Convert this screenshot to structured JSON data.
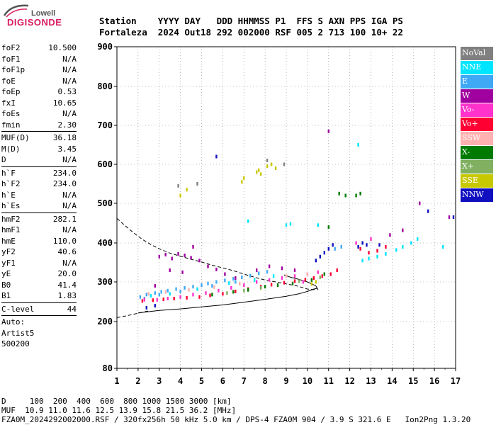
{
  "logo": {
    "line1": "Lowell",
    "line2": "DIGISONDE"
  },
  "header": {
    "line1": "Station    YYYY DAY   DDD HHMMSS P1  FFS S AXN PPS IGA PS",
    "line2": "Fortaleza  2024 Out18 292 002000 RSF 005 2 713 100 10+ 22"
  },
  "params": {
    "group1": [
      {
        "name": "foF2",
        "value": "10.500"
      },
      {
        "name": "foF1",
        "value": "N/A"
      },
      {
        "name": "foF1p",
        "value": "N/A"
      },
      {
        "name": "foE",
        "value": "N/A"
      },
      {
        "name": "foEp",
        "value": "0.53"
      },
      {
        "name": "fxI",
        "value": "10.65"
      },
      {
        "name": "foEs",
        "value": "N/A"
      },
      {
        "name": "fmin",
        "value": "2.30"
      }
    ],
    "group2": [
      {
        "name": "MUF(D)",
        "value": "36.18"
      },
      {
        "name": "M(D)",
        "value": "3.45"
      },
      {
        "name": "D",
        "value": "N/A"
      }
    ],
    "group3": [
      {
        "name": "h`F",
        "value": "234.0"
      },
      {
        "name": "h`F2",
        "value": "234.0"
      },
      {
        "name": "h`E",
        "value": "N/A"
      },
      {
        "name": "h`Es",
        "value": "N/A"
      }
    ],
    "group4": [
      {
        "name": "hmF2",
        "value": "282.1"
      },
      {
        "name": "hmF1",
        "value": "N/A"
      },
      {
        "name": "hmE",
        "value": "110.0"
      },
      {
        "name": "yF2",
        "value": "40.6"
      },
      {
        "name": "yF1",
        "value": "N/A"
      },
      {
        "name": "yE",
        "value": "20.0"
      },
      {
        "name": "B0",
        "value": "41.4"
      },
      {
        "name": "B1",
        "value": "1.83"
      }
    ],
    "group5": [
      {
        "name": "C-level",
        "value": "44"
      }
    ],
    "notes": [
      "Auto:",
      "Artist5",
      "500200"
    ]
  },
  "legend": [
    {
      "label": "NoVal",
      "color": "#808080"
    },
    {
      "label": "NNE",
      "color": "#00e5ff"
    },
    {
      "label": "E",
      "color": "#3fa9f5"
    },
    {
      "label": "W",
      "color": "#a0009f"
    },
    {
      "label": "Vo-",
      "color": "#ff33cc"
    },
    {
      "label": "Vo+",
      "color": "#ff0033"
    },
    {
      "label": "SSW",
      "color": "#ffb0b0"
    },
    {
      "label": "X-",
      "color": "#007a00"
    },
    {
      "label": "X+",
      "color": "#80b060"
    },
    {
      "label": "SSE",
      "color": "#c8c800"
    },
    {
      "label": "NNW",
      "color": "#1010c0"
    }
  ],
  "footer": {
    "line1": "D     100  200  400  600  800 1000 1500 3000 [km]",
    "line2": "MUF  10.9 11.0 11.6 12.5 13.9 15.8 21.5 36.2 [MHz]",
    "line3": "FZA0M_2024292002000.RSF / 320fx256h 50 kHz 5.0 km / DPS-4 FZA0M 904 / 3.9 S 321.6 E   Ion2Png 1.3.20"
  },
  "chart_data": {
    "type": "scatter",
    "x_ticks": [
      "1",
      "2",
      "3",
      "4",
      "5",
      "6",
      "7",
      "8",
      "9",
      "10",
      "11",
      "12",
      "13",
      "14",
      "15",
      "16",
      "17"
    ],
    "y_ticks": [
      "80",
      "200",
      "300",
      "400",
      "500",
      "600",
      "700",
      "800",
      "900"
    ],
    "xlim": [
      1,
      17
    ],
    "y_mapping": [
      [
        80,
        520
      ],
      [
        200,
        454
      ],
      [
        300,
        398
      ],
      [
        400,
        343
      ],
      [
        500,
        287
      ],
      [
        600,
        232
      ],
      [
        700,
        177
      ],
      [
        800,
        122
      ],
      [
        900,
        66
      ]
    ],
    "grid": true,
    "series": [
      {
        "name": "E",
        "color": "#3fa9f5",
        "points": [
          [
            2.1,
            262
          ],
          [
            2.4,
            268
          ],
          [
            2.8,
            272
          ],
          [
            3.1,
            275
          ],
          [
            3.4,
            278
          ],
          [
            3.8,
            282
          ],
          [
            4.2,
            285
          ],
          [
            4.6,
            288
          ],
          [
            5.0,
            292
          ],
          [
            5.3,
            296
          ],
          [
            5.7,
            300
          ],
          [
            6.1,
            304
          ],
          [
            6.5,
            308
          ],
          [
            6.9,
            312
          ],
          [
            7.3,
            316
          ],
          [
            7.7,
            322
          ],
          [
            8.1,
            326
          ],
          [
            2.3,
            258
          ],
          [
            3.0,
            268
          ],
          [
            4.0,
            276
          ],
          [
            5.5,
            290
          ],
          [
            6.6,
            300
          ],
          [
            11.3,
            385
          ],
          [
            11.6,
            390
          ]
        ]
      },
      {
        "name": "NNE",
        "color": "#00e5ff",
        "points": [
          [
            2.6,
            265
          ],
          [
            3.5,
            270
          ],
          [
            4.8,
            282
          ],
          [
            6.3,
            297
          ],
          [
            7.5,
            305
          ],
          [
            8.4,
            315
          ],
          [
            12.6,
            355
          ],
          [
            12.9,
            360
          ],
          [
            13.3,
            365
          ],
          [
            13.7,
            372
          ],
          [
            14.2,
            382
          ],
          [
            14.5,
            390
          ],
          [
            14.9,
            400
          ],
          [
            15.2,
            410
          ],
          [
            16.4,
            390
          ],
          [
            9.0,
            445
          ],
          [
            9.2,
            448
          ],
          [
            12.4,
            650
          ],
          [
            7.2,
            455
          ],
          [
            10.5,
            445
          ]
        ]
      },
      {
        "name": "W",
        "color": "#a0009f",
        "points": [
          [
            3.0,
            365
          ],
          [
            3.3,
            370
          ],
          [
            3.6,
            360
          ],
          [
            3.9,
            372
          ],
          [
            4.2,
            368
          ],
          [
            4.5,
            362
          ],
          [
            4.9,
            355
          ],
          [
            5.3,
            340
          ],
          [
            5.7,
            332
          ],
          [
            6.1,
            320
          ],
          [
            3.5,
            330
          ],
          [
            4.1,
            325
          ],
          [
            6.6,
            310
          ],
          [
            7.6,
            330
          ],
          [
            8.2,
            340
          ],
          [
            8.8,
            335
          ],
          [
            9.4,
            330
          ],
          [
            4.6,
            390
          ],
          [
            15.3,
            500
          ],
          [
            16.7,
            465
          ],
          [
            11.0,
            685
          ],
          [
            13.9,
            420
          ],
          [
            14.5,
            432
          ],
          [
            2.8,
            290
          ]
        ]
      },
      {
        "name": "Vo-",
        "color": "#ff33cc",
        "points": [
          [
            2.3,
            255
          ],
          [
            2.9,
            255
          ],
          [
            3.4,
            258
          ],
          [
            4.0,
            262
          ],
          [
            4.6,
            268
          ],
          [
            5.2,
            272
          ],
          [
            5.8,
            278
          ],
          [
            6.4,
            285
          ],
          [
            7.0,
            292
          ],
          [
            7.6,
            300
          ],
          [
            8.2,
            305
          ],
          [
            8.8,
            310
          ],
          [
            9.4,
            315
          ],
          [
            10.0,
            320
          ],
          [
            10.5,
            325
          ],
          [
            9.8,
            300
          ],
          [
            12.3,
            400
          ],
          [
            13.0,
            410
          ]
        ]
      },
      {
        "name": "Vo+",
        "color": "#ff0033",
        "points": [
          [
            2.2,
            252
          ],
          [
            2.7,
            254
          ],
          [
            3.2,
            256
          ],
          [
            3.7,
            258
          ],
          [
            4.3,
            260
          ],
          [
            4.9,
            262
          ],
          [
            5.4,
            266
          ],
          [
            6.0,
            270
          ],
          [
            6.6,
            276
          ],
          [
            7.2,
            282
          ],
          [
            7.8,
            288
          ],
          [
            8.3,
            293
          ],
          [
            8.9,
            298
          ],
          [
            9.4,
            302
          ],
          [
            9.9,
            306
          ],
          [
            10.3,
            310
          ],
          [
            10.7,
            315
          ],
          [
            11.1,
            320
          ],
          [
            11.4,
            330
          ],
          [
            12.5,
            385
          ],
          [
            12.9,
            375
          ],
          [
            13.3,
            380
          ],
          [
            13.7,
            390
          ]
        ]
      },
      {
        "name": "SSW",
        "color": "#ffb0b0",
        "points": [
          [
            2.5,
            270
          ],
          [
            3.3,
            275
          ],
          [
            4.4,
            280
          ],
          [
            5.6,
            287
          ],
          [
            6.8,
            295
          ],
          [
            9.0,
            315
          ],
          [
            10.0,
            320
          ]
        ]
      },
      {
        "name": "X-",
        "color": "#007a00",
        "points": [
          [
            5.5,
            268
          ],
          [
            6.5,
            275
          ],
          [
            7.2,
            280
          ],
          [
            8.0,
            288
          ],
          [
            8.6,
            292
          ],
          [
            9.3,
            296
          ],
          [
            10.2,
            305
          ],
          [
            10.8,
            320
          ],
          [
            11.0,
            440
          ],
          [
            11.5,
            525
          ],
          [
            12.3,
            520
          ],
          [
            12.5,
            525
          ],
          [
            11.8,
            520
          ]
        ]
      },
      {
        "name": "X+",
        "color": "#80b060",
        "points": [
          [
            6.2,
            272
          ],
          [
            7.0,
            278
          ],
          [
            7.8,
            285
          ],
          [
            9.6,
            302
          ],
          [
            10.6,
            312
          ]
        ]
      },
      {
        "name": "SSE",
        "color": "#c8c800",
        "points": [
          [
            4.0,
            520
          ],
          [
            4.3,
            535
          ],
          [
            6.9,
            555
          ],
          [
            7.0,
            565
          ],
          [
            7.6,
            580
          ],
          [
            7.7,
            585
          ],
          [
            7.8,
            575
          ],
          [
            8.1,
            595
          ],
          [
            8.3,
            600
          ],
          [
            8.5,
            590
          ],
          [
            10.2,
            295
          ],
          [
            10.4,
            300
          ]
        ]
      },
      {
        "name": "NNW",
        "color": "#1010c0",
        "points": [
          [
            10.4,
            355
          ],
          [
            10.6,
            365
          ],
          [
            10.8,
            375
          ],
          [
            11.0,
            385
          ],
          [
            11.2,
            395
          ],
          [
            12.4,
            390
          ],
          [
            12.6,
            400
          ],
          [
            12.8,
            395
          ],
          [
            13.4,
            395
          ],
          [
            15.7,
            480
          ],
          [
            16.9,
            465
          ],
          [
            5.7,
            620
          ],
          [
            2.4,
            235
          ],
          [
            2.8,
            240
          ]
        ]
      },
      {
        "name": "NoVal",
        "color": "#808080",
        "points": [
          [
            8.1,
            610
          ],
          [
            8.9,
            600
          ],
          [
            3.9,
            545
          ],
          [
            4.8,
            550
          ]
        ]
      }
    ],
    "curves": [
      {
        "style": "dashed",
        "points": [
          [
            1.0,
            462
          ],
          [
            1.4,
            443
          ],
          [
            1.8,
            425
          ],
          [
            2.2,
            409
          ],
          [
            2.6,
            396
          ],
          [
            3.0,
            385
          ],
          [
            3.5,
            374
          ],
          [
            4.0,
            366
          ],
          [
            4.5,
            358
          ],
          [
            5.0,
            351
          ],
          [
            5.5,
            343
          ],
          [
            6.0,
            336
          ],
          [
            6.5,
            329
          ],
          [
            7.0,
            320
          ],
          [
            7.5,
            312
          ],
          [
            8.0,
            305
          ],
          [
            8.5,
            300
          ],
          [
            9.0,
            295
          ],
          [
            9.5,
            290
          ],
          [
            10.0,
            282
          ],
          [
            10.4,
            280
          ]
        ]
      },
      {
        "style": "dashed",
        "points": [
          [
            1.0,
            210
          ],
          [
            1.5,
            215
          ],
          [
            2.0,
            221
          ],
          [
            2.5,
            227
          ]
        ]
      },
      {
        "style": "solid",
        "points": [
          [
            2.0,
            222
          ],
          [
            3.0,
            228
          ],
          [
            4.0,
            232
          ],
          [
            5.0,
            237
          ],
          [
            6.0,
            242
          ],
          [
            7.0,
            249
          ],
          [
            8.0,
            256
          ],
          [
            9.0,
            264
          ],
          [
            9.6,
            270
          ],
          [
            10.0,
            276
          ],
          [
            10.3,
            282
          ],
          [
            10.45,
            284
          ],
          [
            10.5,
            280
          ],
          [
            10.4,
            290
          ],
          [
            10.0,
            300
          ],
          [
            9.5,
            308
          ],
          [
            9.2,
            312
          ],
          [
            9.0,
            316
          ],
          [
            8.9,
            318
          ]
        ]
      }
    ]
  }
}
